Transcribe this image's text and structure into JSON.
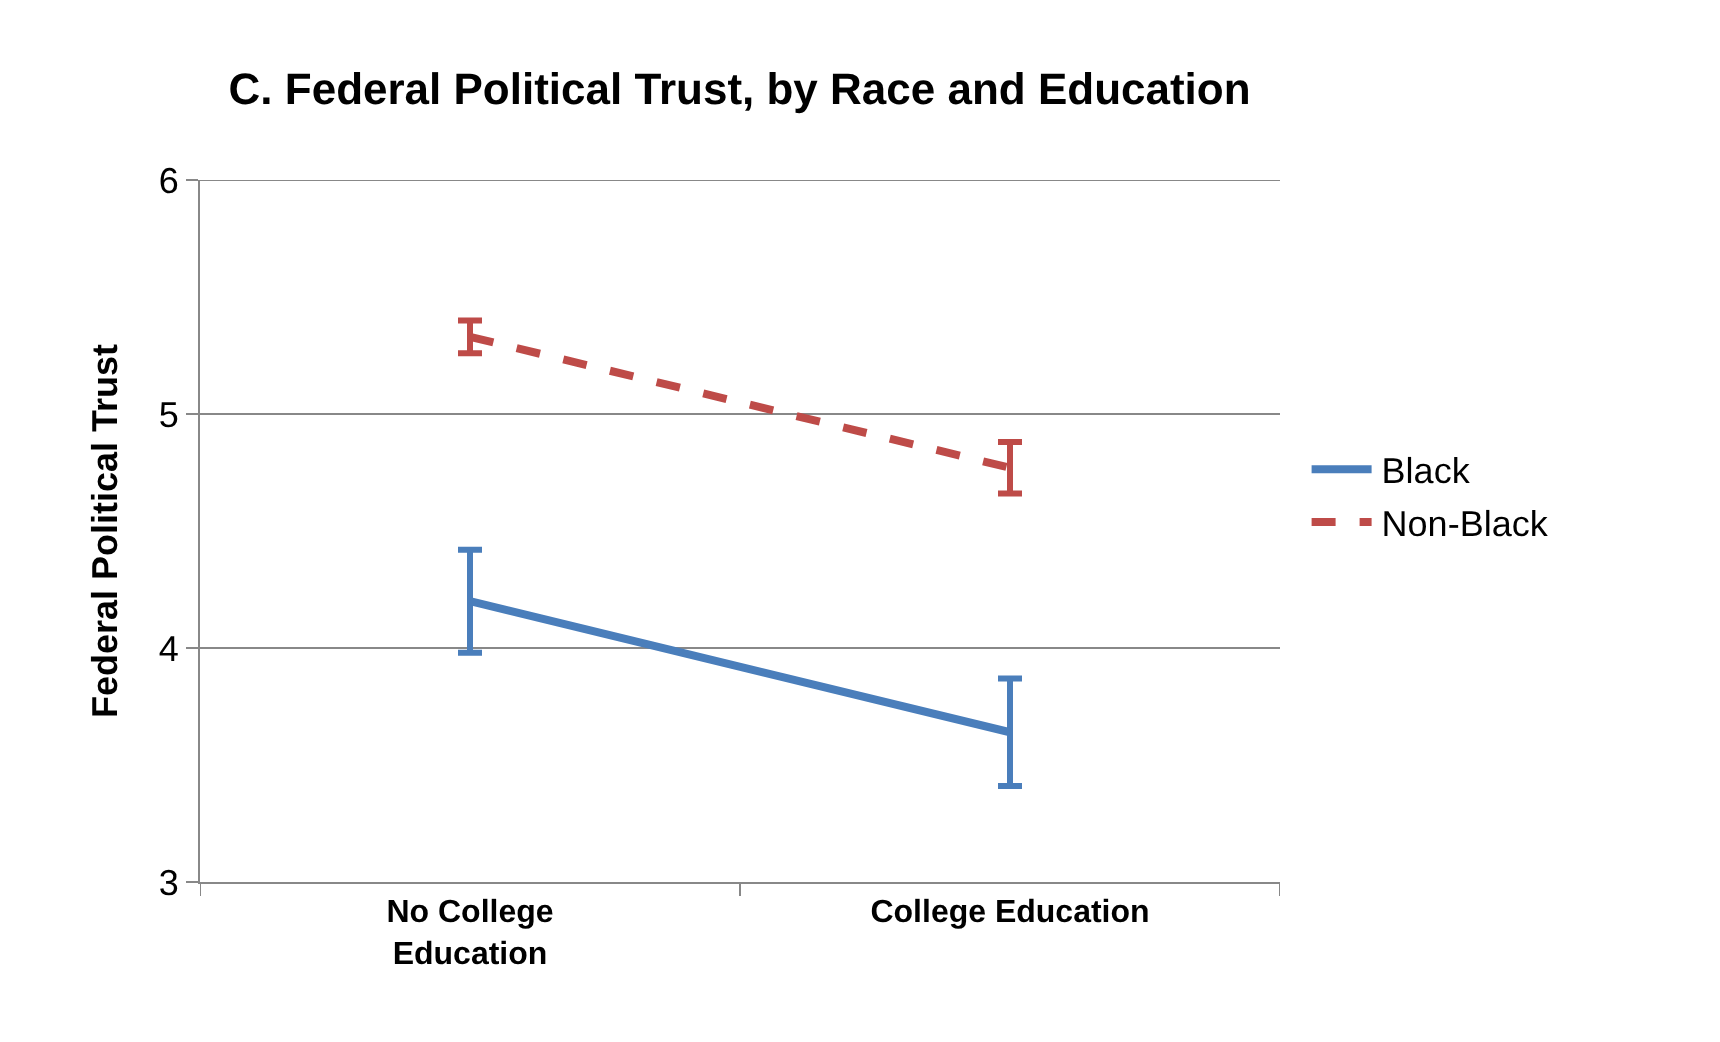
{
  "chart_data": {
    "type": "line",
    "title": "C. Federal Political Trust, by Race and Education",
    "ylabel": "Federal Political Trust",
    "categories": [
      "No College Education",
      "College Education"
    ],
    "series": [
      {
        "name": "Black",
        "color": "#4a7ebb",
        "values": [
          4.2,
          3.64
        ],
        "errors": [
          0.22,
          0.23
        ],
        "line_style": "solid"
      },
      {
        "name": "Non-Black",
        "color": "#be4b48",
        "values": [
          5.33,
          4.77
        ],
        "errors": [
          0.07,
          0.11
        ],
        "line_style": "dashed"
      }
    ],
    "ylim": [
      3,
      6
    ],
    "yticks": [
      3,
      4,
      5,
      6
    ],
    "grid": "y",
    "legend": "right"
  }
}
